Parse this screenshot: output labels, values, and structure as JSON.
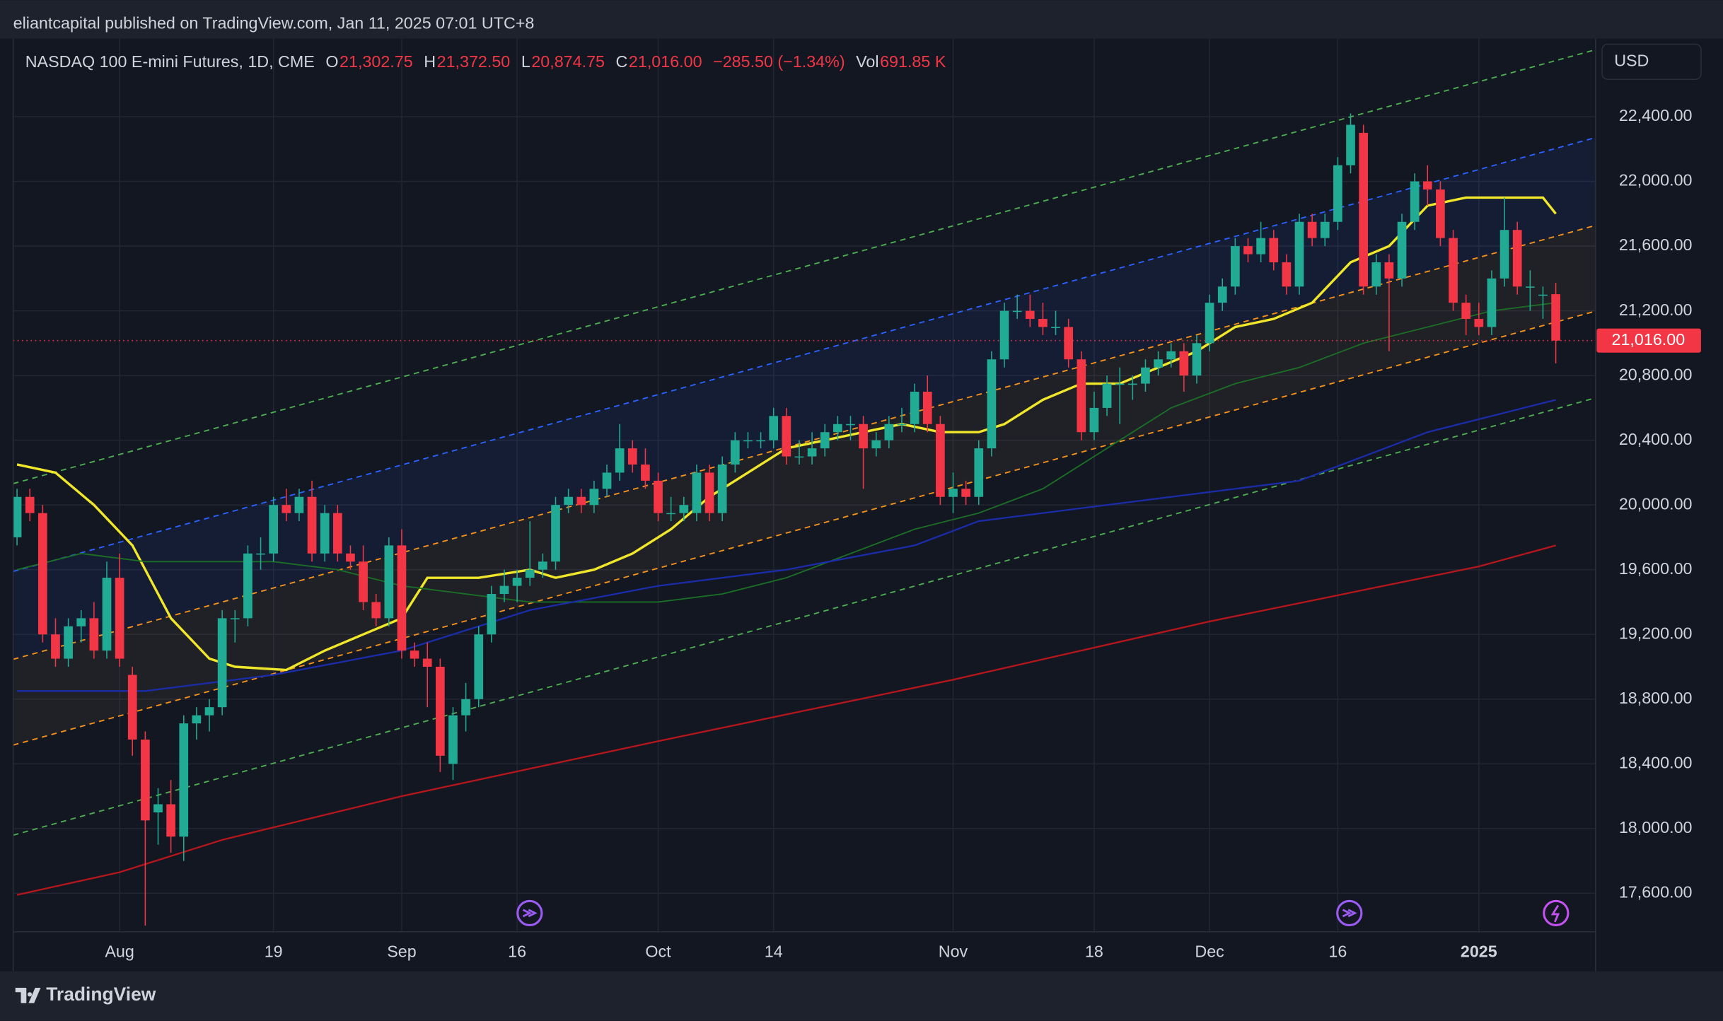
{
  "header": "eliantcapital published on TradingView.com, Jan 11, 2025 07:01 UTC+8",
  "footer": "TradingView",
  "chart_data": {
    "type": "candlestick",
    "title": "NASDAQ 100 E-mini Futures, 1D, CME",
    "ohlc_legend": [
      {
        "label": "O",
        "value": "21,302.75"
      },
      {
        "label": "H",
        "value": "21,372.50"
      },
      {
        "label": "L",
        "value": "20,874.75"
      },
      {
        "label": "C",
        "value": "21,016.00"
      }
    ],
    "change": "−285.50 (−1.34%)",
    "volume": {
      "label": "Vol",
      "value": "691.85 K"
    },
    "currency": "USD",
    "up_color": "#22ab94",
    "down_color": "#f23645",
    "candles": [
      [
        19800,
        20100,
        19750,
        20050
      ],
      [
        20050,
        20100,
        19900,
        19950
      ],
      [
        19950,
        20000,
        19150,
        19200
      ],
      [
        19200,
        19300,
        19000,
        19050
      ],
      [
        19050,
        19300,
        19000,
        19250
      ],
      [
        19250,
        19350,
        19150,
        19300
      ],
      [
        19300,
        19400,
        19050,
        19100
      ],
      [
        19100,
        19650,
        19050,
        19550
      ],
      [
        19550,
        19700,
        19000,
        19050
      ],
      [
        18950,
        19000,
        18450,
        18550
      ],
      [
        18550,
        18600,
        17400,
        18050
      ],
      [
        18100,
        18250,
        17900,
        18150
      ],
      [
        18150,
        18300,
        17850,
        17950
      ],
      [
        17950,
        18700,
        17800,
        18650
      ],
      [
        18650,
        18750,
        18550,
        18700
      ],
      [
        18700,
        18800,
        18600,
        18750
      ],
      [
        18750,
        19350,
        18700,
        19300
      ],
      [
        19300,
        19350,
        19150,
        19300
      ],
      [
        19300,
        19750,
        19250,
        19700
      ],
      [
        19700,
        19800,
        19600,
        19700
      ],
      [
        19700,
        20050,
        19650,
        20000
      ],
      [
        20000,
        20100,
        19900,
        19950
      ],
      [
        19950,
        20100,
        19900,
        20050
      ],
      [
        20050,
        20150,
        19650,
        19700
      ],
      [
        19700,
        20000,
        19650,
        19950
      ],
      [
        19950,
        20000,
        19650,
        19700
      ],
      [
        19700,
        19750,
        19600,
        19650
      ],
      [
        19650,
        19750,
        19350,
        19400
      ],
      [
        19400,
        19450,
        19250,
        19300
      ],
      [
        19300,
        19800,
        19250,
        19750
      ],
      [
        19750,
        19850,
        19050,
        19100
      ],
      [
        19100,
        19150,
        19000,
        19050
      ],
      [
        19050,
        19150,
        18750,
        19000
      ],
      [
        19000,
        19050,
        18350,
        18450
      ],
      [
        18400,
        18750,
        18300,
        18700
      ],
      [
        18700,
        18900,
        18600,
        18800
      ],
      [
        18800,
        19250,
        18750,
        19200
      ],
      [
        19200,
        19500,
        19150,
        19450
      ],
      [
        19450,
        19600,
        19400,
        19500
      ],
      [
        19500,
        19600,
        19400,
        19550
      ],
      [
        19550,
        19900,
        19500,
        19600
      ],
      [
        19600,
        19700,
        19550,
        19650
      ],
      [
        19650,
        20050,
        19600,
        20000
      ],
      [
        20000,
        20100,
        19950,
        20050
      ],
      [
        20050,
        20100,
        19950,
        20000
      ],
      [
        20000,
        20150,
        19950,
        20100
      ],
      [
        20100,
        20250,
        20050,
        20200
      ],
      [
        20200,
        20500,
        20150,
        20350
      ],
      [
        20350,
        20400,
        20200,
        20250
      ],
      [
        20250,
        20350,
        20100,
        20150
      ],
      [
        20150,
        20200,
        19900,
        19950
      ],
      [
        19950,
        20050,
        19900,
        19950
      ],
      [
        19950,
        20050,
        19900,
        20000
      ],
      [
        19950,
        20250,
        19900,
        20200
      ],
      [
        20200,
        20250,
        19900,
        19950
      ],
      [
        19950,
        20300,
        19900,
        20250
      ],
      [
        20250,
        20450,
        20200,
        20400
      ],
      [
        20400,
        20450,
        20350,
        20400
      ],
      [
        20400,
        20450,
        20350,
        20400
      ],
      [
        20400,
        20600,
        20350,
        20550
      ],
      [
        20550,
        20600,
        20250,
        20300
      ],
      [
        20300,
        20400,
        20250,
        20300
      ],
      [
        20300,
        20450,
        20250,
        20350
      ],
      [
        20350,
        20500,
        20300,
        20450
      ],
      [
        20450,
        20550,
        20400,
        20500
      ],
      [
        20500,
        20550,
        20400,
        20500
      ],
      [
        20500,
        20550,
        20100,
        20350
      ],
      [
        20350,
        20450,
        20300,
        20400
      ],
      [
        20400,
        20550,
        20350,
        20500
      ],
      [
        20500,
        20600,
        20450,
        20500
      ],
      [
        20500,
        20750,
        20450,
        20700
      ],
      [
        20700,
        20800,
        20450,
        20500
      ],
      [
        20500,
        20550,
        20000,
        20050
      ],
      [
        20050,
        20200,
        19950,
        20100
      ],
      [
        20100,
        20150,
        20000,
        20050
      ],
      [
        20050,
        20400,
        20000,
        20350
      ],
      [
        20350,
        20950,
        20300,
        20900
      ],
      [
        20900,
        21250,
        20850,
        21200
      ],
      [
        21200,
        21300,
        21150,
        21200
      ],
      [
        21200,
        21300,
        21100,
        21150
      ],
      [
        21150,
        21250,
        21050,
        21100
      ],
      [
        21100,
        21200,
        21050,
        21100
      ],
      [
        21100,
        21150,
        20850,
        20900
      ],
      [
        20900,
        20950,
        20400,
        20450
      ],
      [
        20450,
        20700,
        20400,
        20600
      ],
      [
        20600,
        20800,
        20550,
        20750
      ],
      [
        20750,
        20850,
        20500,
        20750
      ],
      [
        20750,
        20800,
        20650,
        20750
      ],
      [
        20750,
        20900,
        20700,
        20850
      ],
      [
        20850,
        20950,
        20800,
        20900
      ],
      [
        20900,
        21000,
        20850,
        20950
      ],
      [
        20950,
        21000,
        20700,
        20800
      ],
      [
        20800,
        21050,
        20750,
        21000
      ],
      [
        21000,
        21300,
        20950,
        21250
      ],
      [
        21250,
        21400,
        21200,
        21350
      ],
      [
        21350,
        21650,
        21300,
        21600
      ],
      [
        21600,
        21650,
        21500,
        21550
      ],
      [
        21550,
        21750,
        21500,
        21650
      ],
      [
        21650,
        21700,
        21450,
        21500
      ],
      [
        21500,
        21550,
        21300,
        21350
      ],
      [
        21350,
        21800,
        21300,
        21750
      ],
      [
        21750,
        21800,
        21600,
        21650
      ],
      [
        21650,
        21800,
        21600,
        21750
      ],
      [
        21750,
        22150,
        21700,
        22100
      ],
      [
        22100,
        22420,
        22050,
        22350
      ],
      [
        22300,
        22350,
        21300,
        21350
      ],
      [
        21350,
        21550,
        21300,
        21500
      ],
      [
        21500,
        21550,
        20950,
        21400
      ],
      [
        21400,
        21800,
        21350,
        21750
      ],
      [
        21750,
        22050,
        21700,
        22000
      ],
      [
        22000,
        22100,
        21850,
        21950
      ],
      [
        21950,
        22000,
        21600,
        21650
      ],
      [
        21650,
        21700,
        21200,
        21250
      ],
      [
        21250,
        21300,
        21050,
        21150
      ],
      [
        21150,
        21250,
        21050,
        21100
      ],
      [
        21100,
        21450,
        21050,
        21400
      ],
      [
        21400,
        21900,
        21350,
        21700
      ],
      [
        21700,
        21750,
        21300,
        21350
      ],
      [
        21350,
        21450,
        21200,
        21350
      ],
      [
        21300,
        21350,
        21150,
        21300
      ],
      [
        21302.75,
        21372.5,
        20874.75,
        21016
      ]
    ],
    "overlays": [
      {
        "color": "#f0e62a",
        "width": 2.2,
        "x": [
          0,
          3,
          6,
          9,
          12,
          15,
          17,
          21,
          24,
          27,
          30,
          32,
          36,
          40,
          42,
          45,
          48,
          51,
          54,
          57,
          60,
          63,
          66,
          69,
          72,
          75,
          77,
          80,
          83,
          86,
          89,
          92,
          95,
          98,
          101,
          104,
          107,
          110,
          113,
          116,
          119,
          120
        ],
        "values": [
          20250,
          20200,
          20000,
          19750,
          19300,
          19050,
          19000,
          18980,
          19100,
          19200,
          19300,
          19550,
          19550,
          19600,
          19550,
          19600,
          19700,
          19850,
          20050,
          20200,
          20350,
          20400,
          20450,
          20500,
          20450,
          20450,
          20500,
          20650,
          20750,
          20750,
          20850,
          20950,
          21100,
          21150,
          21250,
          21500,
          21600,
          21850,
          21900,
          21900,
          21900,
          21800
        ]
      },
      {
        "color": "#1b6e25",
        "width": 1.2,
        "x": [
          0,
          5,
          10,
          15,
          20,
          25,
          30,
          35,
          40,
          45,
          50,
          55,
          60,
          65,
          70,
          75,
          80,
          85,
          90,
          95,
          100,
          105,
          110,
          115,
          120
        ],
        "values": [
          19600,
          19700,
          19650,
          19650,
          19650,
          19600,
          19500,
          19450,
          19400,
          19400,
          19400,
          19450,
          19550,
          19700,
          19850,
          19950,
          20100,
          20350,
          20600,
          20750,
          20850,
          21000,
          21100,
          21200,
          21250
        ]
      },
      {
        "color": "#1a2ca8",
        "width": 1.5,
        "x": [
          0,
          10,
          20,
          30,
          40,
          50,
          60,
          70,
          75,
          80,
          90,
          100,
          105,
          110,
          115,
          120
        ],
        "values": [
          18850,
          18850,
          18950,
          19100,
          19350,
          19500,
          19600,
          19750,
          19900,
          19950,
          20050,
          20150,
          20300,
          20450,
          20550,
          20650
        ]
      },
      {
        "color": "#b5161c",
        "width": 1.5,
        "x": [
          0,
          8,
          16,
          30,
          50,
          73,
          93,
          114,
          120
        ],
        "values": [
          17590,
          17730,
          17930,
          18200,
          18540,
          18920,
          19280,
          19620,
          19750
        ]
      }
    ],
    "channels": [
      {
        "color": "#4caf50",
        "x": [
          -0.3,
          123.1
        ],
        "values": [
          20132,
          22814
        ]
      },
      {
        "color": "#2962ff",
        "x": [
          -0.3,
          123.1
        ],
        "values": [
          19589,
          22271
        ],
        "fill": "rgba(41,98,255,0.09)"
      },
      {
        "color": "#f7931a",
        "x": [
          -0.3,
          123.1
        ],
        "values": [
          19046,
          21728
        ],
        "fill": "rgba(150,120,90,0.10)"
      },
      {
        "color": "#f7931a",
        "x": [
          -0.3,
          123.1
        ],
        "values": [
          18516,
          21198
        ]
      },
      {
        "color": "#4caf50",
        "x": [
          -0.3,
          123.1
        ],
        "values": [
          17959,
          20662
        ]
      }
    ],
    "last_price": {
      "value": 21016,
      "label": "21,016.00"
    },
    "xlim": [
      -0.3,
      123.1
    ],
    "xticks": [
      {
        "value": 8,
        "label": "Aug"
      },
      {
        "value": 20,
        "label": "19"
      },
      {
        "value": 30,
        "label": "Sep"
      },
      {
        "value": 39,
        "label": "16"
      },
      {
        "value": 50,
        "label": "Oct"
      },
      {
        "value": 59,
        "label": "14"
      },
      {
        "value": 73,
        "label": "Nov"
      },
      {
        "value": 84,
        "label": "18"
      },
      {
        "value": 93,
        "label": "Dec"
      },
      {
        "value": 103,
        "label": "16"
      },
      {
        "value": 114,
        "label": "2025"
      }
    ],
    "ylim": [
      17362,
      22882
    ],
    "yticks": [
      {
        "value": 17600,
        "label": "17,600.00"
      },
      {
        "value": 18000,
        "label": "18,000.00"
      },
      {
        "value": 18400,
        "label": "18,400.00"
      },
      {
        "value": 18800,
        "label": "18,800.00"
      },
      {
        "value": 19200,
        "label": "19,200.00"
      },
      {
        "value": 19600,
        "label": "19,600.00"
      },
      {
        "value": 20000,
        "label": "20,000.00"
      },
      {
        "value": 20400,
        "label": "20,400.00"
      },
      {
        "value": 20800,
        "label": "20,800.00"
      },
      {
        "value": 21200,
        "label": "21,200.00"
      },
      {
        "value": 21600,
        "label": "21,600.00"
      },
      {
        "value": 22000,
        "label": "22,000.00"
      },
      {
        "value": 22400,
        "label": "22,400.00"
      }
    ],
    "grid": true
  }
}
